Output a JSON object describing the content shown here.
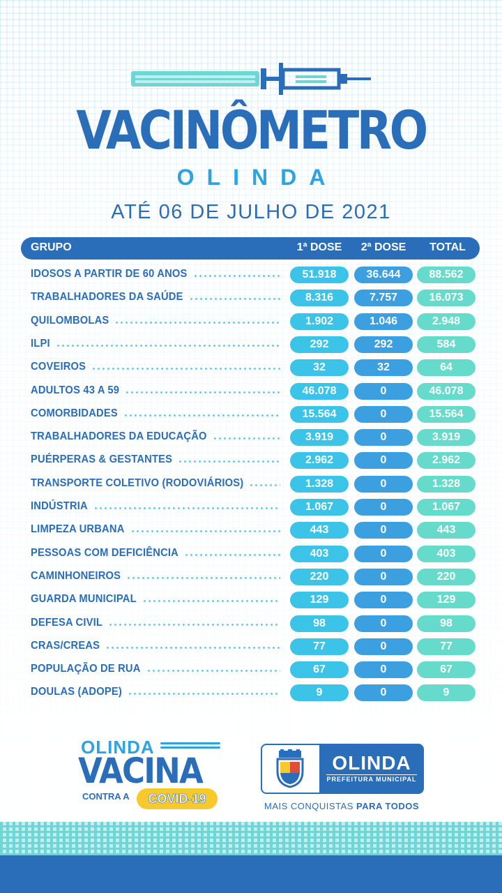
{
  "header": {
    "title": "VACINÔMETRO",
    "subtitle": "OLINDA",
    "date": "ATÉ 06 DE  JULHO DE 2021"
  },
  "table": {
    "columns": [
      "GRUPO",
      "1ª DOSE",
      "2ª DOSE",
      "TOTAL"
    ],
    "rows": [
      {
        "grupo": "IDOSOS A PARTIR DE 60 ANOS",
        "dose1": "51.918",
        "dose2": "36.644",
        "total": "88.562"
      },
      {
        "grupo": "TRABALHADORES DA SAÚDE",
        "dose1": "8.316",
        "dose2": "7.757",
        "total": "16.073"
      },
      {
        "grupo": "QUILOMBOLAS",
        "dose1": "1.902",
        "dose2": "1.046",
        "total": "2.948"
      },
      {
        "grupo": "ILPI",
        "dose1": "292",
        "dose2": "292",
        "total": "584"
      },
      {
        "grupo": "COVEIROS",
        "dose1": "32",
        "dose2": "32",
        "total": "64"
      },
      {
        "grupo": "ADULTOS 43 A 59",
        "dose1": "46.078",
        "dose2": "0",
        "total": "46.078"
      },
      {
        "grupo": "COMORBIDADES",
        "dose1": "15.564",
        "dose2": "0",
        "total": "15.564"
      },
      {
        "grupo": "TRABALHADORES DA EDUCAÇÃO",
        "dose1": "3.919",
        "dose2": "0",
        "total": "3.919"
      },
      {
        "grupo": "PUÉRPERAS & GESTANTES",
        "dose1": "2.962",
        "dose2": "0",
        "total": "2.962"
      },
      {
        "grupo": "TRANSPORTE COLETIVO (RODOVIÁRIOS)",
        "dose1": "1.328",
        "dose2": "0",
        "total": "1.328"
      },
      {
        "grupo": "INDÚSTRIA",
        "dose1": "1.067",
        "dose2": "0",
        "total": "1.067"
      },
      {
        "grupo": "LIMPEZA URBANA",
        "dose1": "443",
        "dose2": "0",
        "total": "443"
      },
      {
        "grupo": "PESSOAS COM DEFICIÊNCIA",
        "dose1": "403",
        "dose2": "0",
        "total": "403"
      },
      {
        "grupo": "CAMINHONEIROS",
        "dose1": "220",
        "dose2": "0",
        "total": "220"
      },
      {
        "grupo": "GUARDA MUNICIPAL",
        "dose1": "129",
        "dose2": "0",
        "total": "129"
      },
      {
        "grupo": "DEFESA CIVIL",
        "dose1": "98",
        "dose2": "0",
        "total": "98"
      },
      {
        "grupo": "CRAS/CREAS",
        "dose1": "77",
        "dose2": "0",
        "total": "77"
      },
      {
        "grupo": "POPULAÇÃO DE RUA",
        "dose1": "67",
        "dose2": "0",
        "total": "67"
      },
      {
        "grupo": "DOULAS (ADOPE)",
        "dose1": "9",
        "dose2": "0",
        "total": "9"
      }
    ]
  },
  "logo_left": {
    "line1": "OLINDA",
    "line2": "VACINA",
    "line3": "CONTRA A",
    "badge": "COVID-19"
  },
  "logo_right": {
    "name": "OLINDA",
    "sub": "PREFEITURA MUNICIPAL",
    "slogan_plain": "MAIS CONQUISTAS ",
    "slogan_bold": "PARA TODOS"
  },
  "colors": {
    "primary_blue": "#2a6db8",
    "dose1_pill": "#3cc3e8",
    "dose2_pill": "#3b9fe0",
    "total_pill": "#66dacb",
    "covid_yellow": "#f7c92c"
  },
  "icons": [
    "syringe-icon",
    "olinda-crest-icon"
  ]
}
